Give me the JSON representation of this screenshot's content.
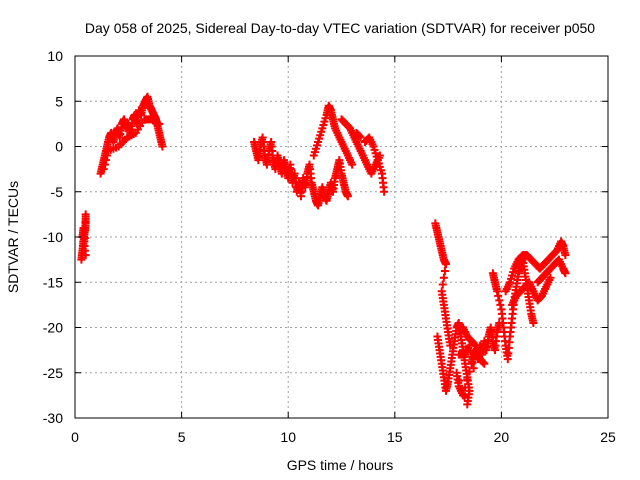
{
  "chart_data": {
    "type": "scatter",
    "title": "Day 058 of 2025, Sidereal Day-to-day VTEC variation (SDTVAR) for receiver p050",
    "xlabel": "GPS time / hours",
    "ylabel": "SDTVAR / TECUs",
    "xlim": [
      0,
      25
    ],
    "ylim": [
      -30,
      10
    ],
    "xticks": [
      "0",
      "5",
      "10",
      "15",
      "20",
      "25"
    ],
    "yticks": [
      "10",
      "5",
      "0",
      "-5",
      "-10",
      "-15",
      "-20",
      "-25",
      "-30"
    ],
    "grid": true,
    "legend": false,
    "marker": "+",
    "series_color": "#ff0000",
    "segments": [
      [
        [
          0.3,
          -12.5
        ],
        [
          0.35,
          -11.5
        ],
        [
          0.4,
          -10.5
        ],
        [
          0.45,
          -9.5
        ],
        [
          0.5,
          -8.5
        ],
        [
          0.5,
          -7.5
        ],
        [
          0.45,
          -11.0
        ],
        [
          0.4,
          -9.0
        ],
        [
          0.35,
          -10.0
        ],
        [
          0.5,
          -12.0
        ]
      ],
      [
        [
          1.2,
          -3.0
        ],
        [
          1.3,
          -2.0
        ],
        [
          1.4,
          -1.0
        ],
        [
          1.5,
          0.0
        ],
        [
          1.6,
          1.0
        ],
        [
          1.7,
          1.5
        ],
        [
          1.8,
          0.5
        ],
        [
          1.9,
          1.5
        ],
        [
          2.0,
          2.0
        ],
        [
          2.1,
          1.0
        ],
        [
          2.2,
          2.5
        ],
        [
          2.3,
          3.0
        ],
        [
          2.4,
          2.0
        ],
        [
          2.5,
          2.5
        ],
        [
          2.6,
          1.5
        ],
        [
          2.7,
          3.0
        ],
        [
          2.8,
          3.5
        ],
        [
          2.9,
          2.5
        ],
        [
          3.0,
          4.0
        ],
        [
          3.1,
          3.5
        ],
        [
          3.2,
          4.5
        ],
        [
          3.3,
          5.0
        ],
        [
          3.4,
          5.5
        ],
        [
          3.5,
          4.5
        ],
        [
          3.6,
          4.0
        ],
        [
          3.7,
          3.5
        ],
        [
          3.8,
          3.0
        ],
        [
          3.9,
          2.0
        ],
        [
          4.0,
          1.0
        ],
        [
          4.1,
          0.0
        ],
        [
          1.35,
          -2.5
        ],
        [
          1.55,
          -0.5
        ],
        [
          2.05,
          0.0
        ],
        [
          2.45,
          1.0
        ],
        [
          2.85,
          1.5
        ],
        [
          3.25,
          3.0
        ],
        [
          3.55,
          3.0
        ],
        [
          3.95,
          2.5
        ]
      ],
      [
        [
          8.4,
          0.5
        ],
        [
          8.5,
          -0.5
        ],
        [
          8.6,
          -1.5
        ],
        [
          8.7,
          0.0
        ],
        [
          8.8,
          1.0
        ],
        [
          8.9,
          -1.0
        ],
        [
          9.0,
          -2.0
        ],
        [
          9.1,
          -0.5
        ],
        [
          9.2,
          0.5
        ],
        [
          9.3,
          -1.5
        ],
        [
          9.4,
          -2.5
        ],
        [
          9.5,
          -1.0
        ],
        [
          9.6,
          -2.0
        ],
        [
          9.7,
          -3.0
        ],
        [
          9.8,
          -1.5
        ],
        [
          9.9,
          -2.5
        ],
        [
          10.0,
          -3.5
        ],
        [
          10.1,
          -2.0
        ],
        [
          10.2,
          -4.0
        ],
        [
          10.3,
          -3.0
        ],
        [
          10.4,
          -5.0
        ],
        [
          10.5,
          -4.0
        ],
        [
          10.6,
          -5.5
        ],
        [
          10.7,
          -3.5
        ],
        [
          10.8,
          -4.5
        ],
        [
          10.9,
          -3.0
        ],
        [
          11.0,
          -2.0
        ],
        [
          11.1,
          -4.0
        ],
        [
          11.2,
          -5.0
        ],
        [
          11.3,
          -6.0
        ],
        [
          11.4,
          -6.5
        ],
        [
          11.5,
          -5.5
        ],
        [
          11.6,
          -4.5
        ],
        [
          11.7,
          -5.5
        ],
        [
          11.8,
          -6.0
        ],
        [
          11.9,
          -5.0
        ],
        [
          12.0,
          -4.0
        ],
        [
          12.1,
          -5.0
        ],
        [
          12.2,
          -3.5
        ],
        [
          12.3,
          -2.5
        ],
        [
          12.4,
          -1.5
        ],
        [
          12.5,
          -3.0
        ],
        [
          12.6,
          -4.0
        ],
        [
          12.7,
          -5.0
        ],
        [
          12.8,
          -5.5
        ],
        [
          11.2,
          -1.0
        ],
        [
          11.4,
          0.5
        ],
        [
          11.6,
          2.0
        ],
        [
          11.8,
          3.5
        ],
        [
          11.9,
          4.5
        ],
        [
          12.0,
          4.0
        ],
        [
          12.1,
          3.0
        ],
        [
          12.2,
          2.0
        ],
        [
          12.4,
          1.0
        ],
        [
          12.6,
          0.0
        ],
        [
          12.8,
          -1.0
        ],
        [
          13.0,
          -2.0
        ],
        [
          12.5,
          3.0
        ],
        [
          12.7,
          2.5
        ],
        [
          12.9,
          2.0
        ],
        [
          13.1,
          1.0
        ],
        [
          13.3,
          0.0
        ],
        [
          13.5,
          -1.0
        ],
        [
          13.7,
          -2.0
        ],
        [
          13.9,
          -3.0
        ],
        [
          14.1,
          -2.0
        ],
        [
          14.3,
          -1.0
        ],
        [
          13.6,
          0.5
        ],
        [
          13.8,
          1.0
        ],
        [
          14.0,
          0.0
        ],
        [
          14.2,
          -1.5
        ],
        [
          14.4,
          -3.0
        ],
        [
          14.5,
          -5.0
        ],
        [
          13.2,
          1.5
        ],
        [
          13.4,
          1.0
        ]
      ],
      [
        [
          16.9,
          -8.5
        ],
        [
          17.0,
          -9.5
        ],
        [
          17.1,
          -10.5
        ],
        [
          17.2,
          -11.5
        ],
        [
          17.3,
          -12.5
        ],
        [
          17.4,
          -13.0
        ],
        [
          17.2,
          -16.0
        ],
        [
          17.3,
          -17.5
        ],
        [
          17.4,
          -19.0
        ],
        [
          17.5,
          -20.5
        ],
        [
          17.6,
          -22.0
        ],
        [
          17.0,
          -21.0
        ],
        [
          17.1,
          -22.5
        ],
        [
          17.2,
          -24.0
        ],
        [
          17.3,
          -25.5
        ],
        [
          17.4,
          -27.0
        ],
        [
          17.5,
          -26.0
        ],
        [
          17.6,
          -24.5
        ],
        [
          17.7,
          -23.0
        ],
        [
          17.8,
          -21.5
        ],
        [
          17.9,
          -20.0
        ],
        [
          18.0,
          -19.5
        ],
        [
          18.1,
          -21.0
        ],
        [
          18.2,
          -22.5
        ],
        [
          18.3,
          -24.0
        ],
        [
          18.4,
          -25.5
        ],
        [
          18.5,
          -27.0
        ],
        [
          18.4,
          -28.5
        ],
        [
          17.9,
          -25.0
        ],
        [
          18.0,
          -26.5
        ],
        [
          18.2,
          -27.5
        ],
        [
          18.6,
          -24.0
        ],
        [
          18.7,
          -23.0
        ],
        [
          18.8,
          -22.5
        ],
        [
          18.9,
          -23.5
        ],
        [
          19.0,
          -22.0
        ],
        [
          19.1,
          -23.0
        ],
        [
          19.2,
          -21.5
        ],
        [
          19.3,
          -22.5
        ],
        [
          19.4,
          -21.0
        ],
        [
          19.5,
          -20.0
        ],
        [
          19.6,
          -21.5
        ],
        [
          19.7,
          -22.5
        ],
        [
          19.8,
          -20.5
        ],
        [
          19.9,
          -19.5
        ],
        [
          18.2,
          -20.0
        ],
        [
          18.4,
          -21.0
        ],
        [
          18.6,
          -21.5
        ],
        [
          18.8,
          -22.0
        ],
        [
          19.0,
          -23.5
        ],
        [
          19.2,
          -24.0
        ],
        [
          18.0,
          -23.0
        ],
        [
          18.3,
          -23.0
        ],
        [
          18.5,
          -22.0
        ],
        [
          18.7,
          -24.5
        ],
        [
          19.6,
          -14.0
        ],
        [
          19.7,
          -15.0
        ],
        [
          19.8,
          -16.0
        ],
        [
          20.0,
          -18.0
        ],
        [
          20.1,
          -20.0
        ],
        [
          20.2,
          -22.0
        ],
        [
          20.3,
          -23.5
        ],
        [
          20.4,
          -21.0
        ],
        [
          20.5,
          -19.0
        ],
        [
          20.6,
          -17.0
        ],
        [
          20.7,
          -15.5
        ],
        [
          20.8,
          -14.0
        ],
        [
          20.9,
          -13.0
        ],
        [
          21.0,
          -12.5
        ],
        [
          21.1,
          -14.0
        ],
        [
          21.2,
          -15.5
        ],
        [
          21.3,
          -17.0
        ],
        [
          21.4,
          -18.5
        ],
        [
          21.5,
          -19.5
        ],
        [
          20.2,
          -16.0
        ],
        [
          20.4,
          -15.0
        ],
        [
          20.6,
          -13.5
        ],
        [
          20.8,
          -12.5
        ],
        [
          21.0,
          -12.0
        ],
        [
          21.2,
          -12.0
        ],
        [
          21.4,
          -12.5
        ],
        [
          21.6,
          -13.0
        ],
        [
          21.8,
          -13.5
        ],
        [
          22.0,
          -13.0
        ],
        [
          22.2,
          -12.5
        ],
        [
          22.4,
          -12.0
        ],
        [
          22.6,
          -11.5
        ],
        [
          22.8,
          -10.5
        ],
        [
          22.9,
          -11.0
        ],
        [
          23.0,
          -12.0
        ],
        [
          21.7,
          -15.0
        ],
        [
          21.9,
          -14.5
        ],
        [
          22.1,
          -14.0
        ],
        [
          22.3,
          -13.5
        ],
        [
          22.5,
          -13.0
        ],
        [
          22.7,
          -12.5
        ],
        [
          22.9,
          -13.5
        ],
        [
          23.0,
          -14.0
        ],
        [
          20.5,
          -17.5
        ],
        [
          20.7,
          -16.5
        ],
        [
          20.9,
          -16.0
        ],
        [
          21.1,
          -15.5
        ],
        [
          21.3,
          -15.0
        ],
        [
          21.5,
          -16.0
        ],
        [
          21.7,
          -17.0
        ],
        [
          21.9,
          -16.5
        ],
        [
          22.1,
          -15.5
        ],
        [
          22.3,
          -14.5
        ]
      ]
    ]
  }
}
